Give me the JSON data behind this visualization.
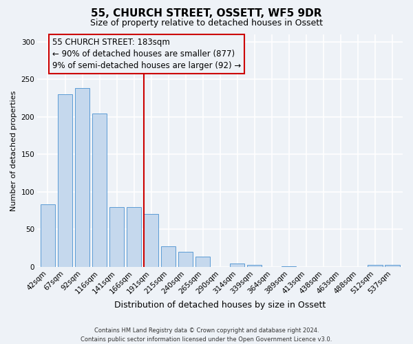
{
  "title": "55, CHURCH STREET, OSSETT, WF5 9DR",
  "subtitle": "Size of property relative to detached houses in Ossett",
  "xlabel": "Distribution of detached houses by size in Ossett",
  "ylabel": "Number of detached properties",
  "bar_labels": [
    "42sqm",
    "67sqm",
    "92sqm",
    "116sqm",
    "141sqm",
    "166sqm",
    "191sqm",
    "215sqm",
    "240sqm",
    "265sqm",
    "290sqm",
    "314sqm",
    "339sqm",
    "364sqm",
    "389sqm",
    "413sqm",
    "438sqm",
    "463sqm",
    "488sqm",
    "512sqm",
    "537sqm"
  ],
  "bar_values": [
    83,
    230,
    238,
    204,
    80,
    80,
    70,
    27,
    20,
    13,
    0,
    4,
    2,
    0,
    1,
    0,
    0,
    0,
    0,
    2,
    2
  ],
  "bar_color": "#c5d8ed",
  "bar_edge_color": "#5b9bd5",
  "vline_color": "#cc0000",
  "annotation_title": "55 CHURCH STREET: 183sqm",
  "annotation_line1": "← 90% of detached houses are smaller (877)",
  "annotation_line2": "9% of semi-detached houses are larger (92) →",
  "annotation_box_color": "#cc0000",
  "ylim": [
    0,
    310
  ],
  "yticks": [
    0,
    50,
    100,
    150,
    200,
    250,
    300
  ],
  "footer1": "Contains HM Land Registry data © Crown copyright and database right 2024.",
  "footer2": "Contains public sector information licensed under the Open Government Licence v3.0.",
  "bg_color": "#eef2f7",
  "grid_color": "#ffffff",
  "title_fontsize": 11,
  "subtitle_fontsize": 9,
  "xlabel_fontsize": 9,
  "ylabel_fontsize": 8,
  "tick_fontsize": 7.5,
  "annotation_fontsize": 8.5,
  "footer_fontsize": 6
}
